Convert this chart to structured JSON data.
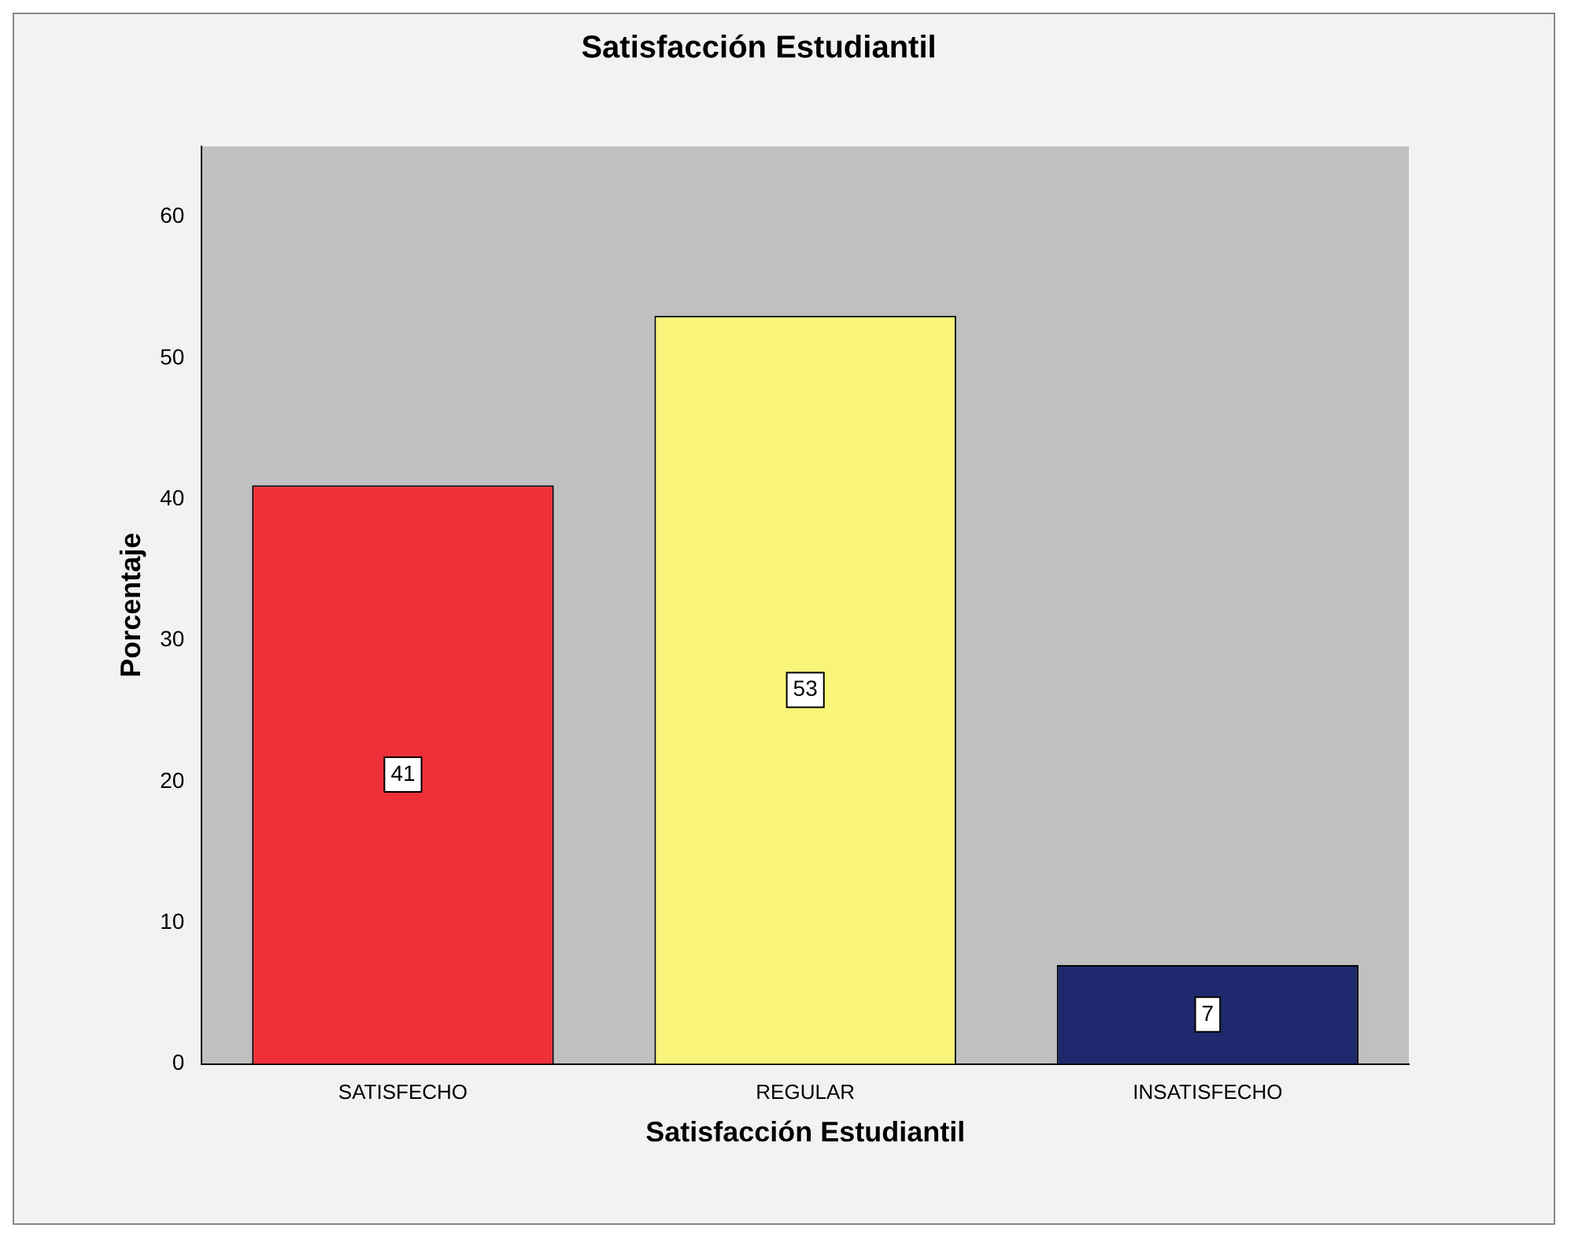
{
  "chart_data": {
    "type": "bar",
    "title": "Satisfacción Estudiantil",
    "xlabel": "Satisfacción Estudiantil",
    "ylabel": "Porcentaje",
    "categories": [
      "SATISFECHO",
      "REGULAR",
      "INSATISFECHO"
    ],
    "values": [
      41,
      53,
      7
    ],
    "colors": [
      "#ef3038",
      "#f9f57a",
      "#1f2a6e"
    ],
    "ylim": [
      0,
      65
    ],
    "yticks": [
      0,
      10,
      20,
      30,
      40,
      50,
      60
    ],
    "grid": false,
    "legend": false,
    "data_labels": true
  }
}
